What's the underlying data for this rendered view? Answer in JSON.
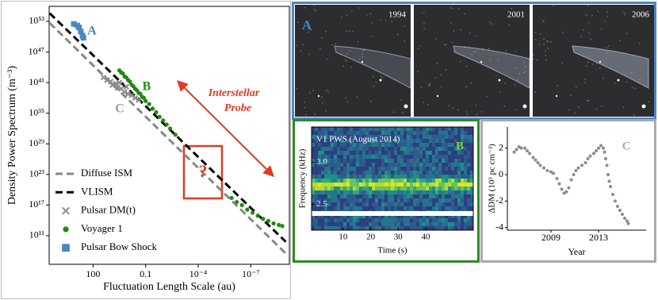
{
  "chart_data": [
    {
      "type": "loglog",
      "xlabel": "Fluctuation Length Scale (au)",
      "ylabel": "Density Power Spectrum (m⁻³)",
      "xlim": [
        32000.0,
        6.3e-10
      ],
      "ylim": [
        250000.0,
        8.9e+55
      ],
      "xticks": [
        100,
        0.1,
        {
          "value": 0.0001,
          "label": "10⁻⁴"
        },
        {
          "value": 1e-07,
          "label": "10⁻⁷"
        }
      ],
      "yticks": [
        {
          "value": 100000000000.0,
          "label": "10¹¹"
        },
        {
          "value": 1e+17,
          "label": "10¹⁷"
        },
        {
          "value": 1e+23,
          "label": "10²³"
        },
        {
          "value": 1e+29,
          "label": "10²⁹"
        },
        {
          "value": 1e+35,
          "label": "10³⁵"
        },
        {
          "value": 1e+41,
          "label": "10⁴¹"
        },
        {
          "value": 1e+47,
          "label": "10⁴⁷"
        },
        {
          "value": 1e+53,
          "label": "10⁵³"
        }
      ],
      "legend": "lower left",
      "series": [
        {
          "name": "Diffuse ISM",
          "color": "#888888",
          "kind": "line",
          "style": "dashed",
          "x": [
            30000.0,
            1e-09
          ],
          "values": [
            5e+52,
            32000000.0
          ]
        },
        {
          "name": "VLISM",
          "color": "#000000",
          "kind": "line",
          "style": "dashed",
          "x": [
            30000.0,
            1e-09
          ],
          "values": [
            4e+54,
            6300000000.0
          ]
        },
        {
          "name": "Pulsar DM(t)",
          "color": "#8c8c8c",
          "kind": "scatter",
          "marker": "x",
          "x": [
            25,
            16,
            10,
            7.9,
            5,
            4,
            2.5,
            1.6,
            1,
            0.63,
            0.4,
            0.25,
            3.2,
            1.26
          ],
          "values": [
            1e+42,
            3.2e+41,
            1.6e+41,
            3.2e+40,
            6.3e+40,
            1e+40,
            6.3e+39,
            1.6e+39,
            6.3e+38,
            3.2e+38,
            1e+38,
            4e+37,
            1e+41,
            1.6e+40
          ]
        },
        {
          "name": "Voyager 1",
          "color": "#1f8a12",
          "kind": "scatter",
          "marker": "o",
          "x": [
            3.16,
            2.51,
            2.0,
            1.58,
            1.26,
            1,
            0.794,
            0.631,
            0.501,
            0.398,
            0.316,
            0.251,
            0.2,
            0.158,
            0.126,
            0.1,
            0.063,
            0.04,
            0.025,
            0.016,
            0.01,
            0.0063,
            0.004,
            0.002,
            1.26e-06,
            6.3e-07,
            3.2e-07,
            1.6e-07,
            7.9e-08,
            4e-08,
            2e-08,
            1e-08,
            5e-09,
            2.5e-09,
            1.6e-09
          ],
          "values": [
            2.5e+43,
            1e+43,
            6.3e+42,
            1.6e+42,
            1e+42,
            3.2e+41,
            1.6e+41,
            4e+40,
            2e+40,
            6.3e+39,
            3.2e+39,
            1e+39,
            6.3e+38,
            1.6e+38,
            1e+38,
            2.5e+37,
            6.3e+36,
            8e+35,
            1.6e+35,
            2e+34,
            4e+33,
            6.3e+32,
            1e+32,
            6.3e+30,
            2.5e+18,
            4e+17,
            1e+17,
            1.3e+16,
            3200000000000000.0,
            790000000000000.0,
            200000000000000.0,
            79000000000000.0,
            25000000000000.0,
            13000000000000.0,
            7900000000000.0
          ]
        },
        {
          "name": "Pulsar Bow Shock",
          "color": "#4a86c5",
          "kind": "scatter",
          "marker": "s",
          "x": [
            1260,
            794,
            631,
            500,
            400,
            355
          ],
          "values": [
            3.2e+52,
            1.6e+52,
            6.3e+51,
            1e+51,
            1.6e+50,
            6.3e+49
          ]
        }
      ],
      "annotations": [
        {
          "text": "A",
          "color": "#4a86c5"
        },
        {
          "text": "B",
          "color": "#1f8a12"
        },
        {
          "text": "C",
          "color": "#999999"
        },
        {
          "text": "Interstellar",
          "color": "#e23a22"
        },
        {
          "text": "Probe",
          "color": "#e23a22"
        },
        {
          "text": "?",
          "color": "#e23a22"
        }
      ]
    },
    {
      "type": "image",
      "label": "A",
      "label_color": "#4a86c5",
      "frames": [
        "1994",
        "2001",
        "2006"
      ]
    },
    {
      "type": "spectrogram",
      "label": "B",
      "label_color": "#7fd43a",
      "title": "V1 PWS (August 2014)",
      "xlabel": "Time (s)",
      "ylabel": "Frequency (kHz)",
      "xlim": [
        -1.5,
        57.3
      ],
      "xticks": [
        10,
        20,
        30,
        40
      ],
      "ylim": [
        2.19,
        3.42
      ],
      "yticks": [
        2.5,
        {
          "value": 3,
          "label": "3.0"
        }
      ]
    },
    {
      "type": "scatter",
      "label": "C",
      "label_color": "#aaaaaa",
      "color": "#8c8c8c",
      "xlabel": "Year",
      "ylabel": "ΔDM (10³ pc cm⁻³)",
      "xlim": [
        2005.33,
        2017.0
      ],
      "xticks": [
        2009,
        2013
      ],
      "ylim": [
        -4.2,
        3.6
      ],
      "yticks": [
        2,
        0,
        -2,
        -4
      ],
      "x": [
        2005.9,
        2006.1,
        2006.3,
        2006.5,
        2006.8,
        2007.0,
        2007.2,
        2007.5,
        2007.7,
        2007.9,
        2008.1,
        2008.4,
        2008.7,
        2009.0,
        2009.2,
        2009.5,
        2009.7,
        2009.9,
        2010.1,
        2010.3,
        2010.5,
        2010.7,
        2010.9,
        2011.1,
        2011.3,
        2011.6,
        2011.9,
        2012.1,
        2012.3,
        2012.6,
        2012.8,
        2013.0,
        2013.2,
        2013.4,
        2013.5,
        2013.6,
        2013.7,
        2013.8,
        2013.9,
        2014.0,
        2014.2,
        2014.4,
        2014.6,
        2014.8,
        2015.0,
        2015.2,
        2015.4,
        2015.5
      ],
      "values": [
        1.7,
        1.9,
        2.1,
        2.0,
        2.0,
        1.8,
        1.6,
        1.3,
        1.1,
        0.9,
        0.7,
        0.5,
        0.3,
        0.2,
        0.1,
        -0.3,
        -0.7,
        -1.1,
        -1.4,
        -1.3,
        -1.0,
        -0.4,
        0.0,
        0.3,
        0.5,
        0.7,
        0.9,
        1.2,
        1.4,
        1.6,
        1.8,
        2.0,
        2.2,
        2.0,
        1.7,
        1.2,
        0.7,
        0.0,
        -0.5,
        -0.9,
        -1.5,
        -2.0,
        -2.4,
        -2.7,
        -3.0,
        -3.3,
        -3.5,
        -3.7
      ]
    }
  ]
}
